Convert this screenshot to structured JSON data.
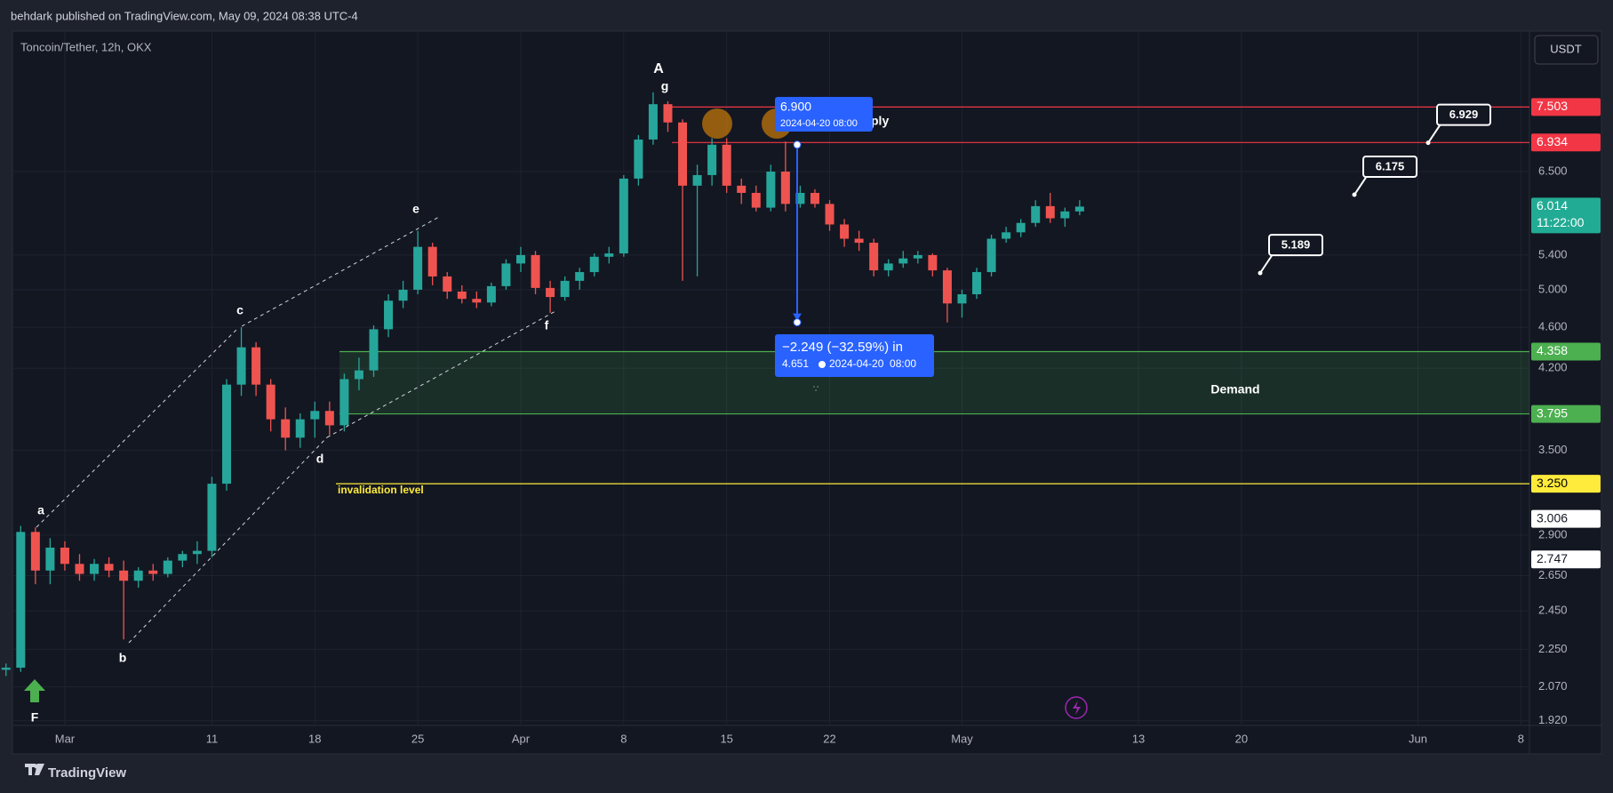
{
  "header": {
    "title": "behdark published on TradingView.com, May 09, 2024 08:38 UTC-4"
  },
  "footer": {
    "brand": "TradingView"
  },
  "chart_data": {
    "type": "candlestick",
    "symbol": "Toncoin/Tether, 12h, OKX",
    "currency": "USDT",
    "log_scale": true,
    "grid": true,
    "up_color": "#26a69a",
    "down_color": "#ef5350",
    "ylim": [
      1.9,
      8.88
    ],
    "yticks": [
      {
        "value": 6.5,
        "label": "6.500"
      },
      {
        "value": 5.4,
        "label": "5.400"
      },
      {
        "value": 5,
        "label": "5.000"
      },
      {
        "value": 4.6,
        "label": "4.600"
      },
      {
        "value": 4.2,
        "label": "4.200"
      },
      {
        "value": 3.5,
        "label": "3.500"
      },
      {
        "value": 2.9,
        "label": "2.900"
      },
      {
        "value": 2.65,
        "label": "2.650"
      },
      {
        "value": 2.45,
        "label": "2.450"
      },
      {
        "value": 2.25,
        "label": "2.250"
      },
      {
        "value": 2.07,
        "label": "2.070"
      },
      {
        "value": 1.92,
        "label": "1.920"
      }
    ],
    "xlim": [
      "2024-02-26T10:30",
      "2024-06-08T14:00"
    ],
    "xticks": [
      {
        "value": "2024-03-01",
        "label": "Mar"
      },
      {
        "value": "2024-03-11",
        "label": "11"
      },
      {
        "value": "2024-03-18",
        "label": "18"
      },
      {
        "value": "2024-03-25",
        "label": "25"
      },
      {
        "value": "2024-04-01",
        "label": "Apr"
      },
      {
        "value": "2024-04-08",
        "label": "8"
      },
      {
        "value": "2024-04-15",
        "label": "15"
      },
      {
        "value": "2024-04-22",
        "label": "22"
      },
      {
        "value": "2024-05-01",
        "label": "May"
      },
      {
        "value": "2024-05-13",
        "label": "13"
      },
      {
        "value": "2024-05-20",
        "label": "20"
      },
      {
        "value": "2024-06-01",
        "label": "Jun"
      },
      {
        "value": "2024-06-08",
        "label": "8"
      }
    ],
    "x": [
      "2024-02-26",
      "2024-02-27",
      "2024-02-28",
      "2024-02-29",
      "2024-03-01",
      "2024-03-02",
      "2024-03-03",
      "2024-03-04",
      "2024-03-05",
      "2024-03-06",
      "2024-03-07",
      "2024-03-08",
      "2024-03-09",
      "2024-03-10",
      "2024-03-11",
      "2024-03-12",
      "2024-03-13",
      "2024-03-14",
      "2024-03-15",
      "2024-03-16",
      "2024-03-17",
      "2024-03-18",
      "2024-03-19",
      "2024-03-20",
      "2024-03-21",
      "2024-03-22",
      "2024-03-23",
      "2024-03-24",
      "2024-03-25",
      "2024-03-26",
      "2024-03-27",
      "2024-03-28",
      "2024-03-29",
      "2024-03-30",
      "2024-03-31",
      "2024-04-01",
      "2024-04-02",
      "2024-04-03",
      "2024-04-04",
      "2024-04-05",
      "2024-04-06",
      "2024-04-07",
      "2024-04-08",
      "2024-04-09",
      "2024-04-10",
      "2024-04-11",
      "2024-04-12",
      "2024-04-13",
      "2024-04-14",
      "2024-04-15",
      "2024-04-16",
      "2024-04-17",
      "2024-04-18",
      "2024-04-19",
      "2024-04-20",
      "2024-04-21",
      "2024-04-22",
      "2024-04-23",
      "2024-04-24",
      "2024-04-25",
      "2024-04-26",
      "2024-04-27",
      "2024-04-28",
      "2024-04-29",
      "2024-04-30",
      "2024-05-01",
      "2024-05-02",
      "2024-05-03",
      "2024-05-04",
      "2024-05-05",
      "2024-05-06",
      "2024-05-07",
      "2024-05-08",
      "2024-05-09"
    ],
    "ohlc": [
      [
        2.15,
        2.18,
        2.12,
        2.16
      ],
      [
        2.16,
        2.96,
        2.14,
        2.92
      ],
      [
        2.92,
        2.95,
        2.6,
        2.68
      ],
      [
        2.68,
        2.88,
        2.6,
        2.82
      ],
      [
        2.82,
        2.86,
        2.68,
        2.72
      ],
      [
        2.72,
        2.78,
        2.62,
        2.66
      ],
      [
        2.66,
        2.75,
        2.62,
        2.72
      ],
      [
        2.72,
        2.76,
        2.64,
        2.68
      ],
      [
        2.68,
        2.74,
        2.3,
        2.62
      ],
      [
        2.62,
        2.7,
        2.58,
        2.68
      ],
      [
        2.68,
        2.72,
        2.62,
        2.66
      ],
      [
        2.66,
        2.76,
        2.64,
        2.74
      ],
      [
        2.74,
        2.8,
        2.7,
        2.78
      ],
      [
        2.78,
        2.86,
        2.72,
        2.8
      ],
      [
        2.8,
        3.3,
        2.76,
        3.25
      ],
      [
        3.25,
        4.1,
        3.2,
        4.05
      ],
      [
        4.05,
        4.6,
        3.95,
        4.4
      ],
      [
        4.4,
        4.45,
        3.95,
        4.05
      ],
      [
        4.05,
        4.1,
        3.65,
        3.75
      ],
      [
        3.75,
        3.85,
        3.5,
        3.6
      ],
      [
        3.6,
        3.8,
        3.52,
        3.75
      ],
      [
        3.75,
        3.9,
        3.6,
        3.82
      ],
      [
        3.82,
        3.9,
        3.62,
        3.7
      ],
      [
        3.7,
        4.15,
        3.65,
        4.1
      ],
      [
        4.1,
        4.3,
        4.0,
        4.18
      ],
      [
        4.18,
        4.62,
        4.12,
        4.58
      ],
      [
        4.58,
        4.95,
        4.5,
        4.88
      ],
      [
        4.88,
        5.1,
        4.8,
        5.0
      ],
      [
        5.0,
        5.7,
        4.95,
        5.5
      ],
      [
        5.5,
        5.55,
        5.05,
        5.15
      ],
      [
        5.15,
        5.2,
        4.9,
        4.98
      ],
      [
        4.98,
        5.05,
        4.85,
        4.9
      ],
      [
        4.9,
        4.98,
        4.8,
        4.86
      ],
      [
        4.86,
        5.08,
        4.82,
        5.04
      ],
      [
        5.04,
        5.35,
        5.0,
        5.3
      ],
      [
        5.3,
        5.5,
        5.2,
        5.4
      ],
      [
        5.4,
        5.45,
        4.95,
        5.02
      ],
      [
        5.02,
        5.1,
        4.75,
        4.92
      ],
      [
        4.92,
        5.15,
        4.88,
        5.1
      ],
      [
        5.1,
        5.25,
        5.0,
        5.2
      ],
      [
        5.2,
        5.42,
        5.15,
        5.38
      ],
      [
        5.38,
        5.5,
        5.3,
        5.42
      ],
      [
        5.42,
        6.45,
        5.38,
        6.4
      ],
      [
        6.4,
        7.05,
        6.3,
        6.98
      ],
      [
        6.98,
        7.75,
        6.9,
        7.55
      ],
      [
        7.55,
        7.6,
        7.1,
        7.25
      ],
      [
        7.25,
        7.3,
        5.1,
        6.3
      ],
      [
        6.3,
        6.6,
        5.15,
        6.45
      ],
      [
        6.45,
        7.0,
        6.3,
        6.9
      ],
      [
        6.9,
        7.0,
        6.2,
        6.3
      ],
      [
        6.3,
        6.4,
        6.05,
        6.2
      ],
      [
        6.2,
        6.3,
        5.95,
        6.0
      ],
      [
        6.0,
        6.6,
        5.95,
        6.5
      ],
      [
        6.5,
        6.95,
        5.95,
        6.05
      ],
      [
        6.05,
        6.3,
        6.0,
        6.2
      ],
      [
        6.2,
        6.25,
        6.0,
        6.05
      ],
      [
        6.05,
        6.1,
        5.7,
        5.78
      ],
      [
        5.78,
        5.85,
        5.5,
        5.6
      ],
      [
        5.6,
        5.7,
        5.45,
        5.55
      ],
      [
        5.55,
        5.6,
        5.15,
        5.22
      ],
      [
        5.22,
        5.35,
        5.15,
        5.3
      ],
      [
        5.3,
        5.45,
        5.25,
        5.36
      ],
      [
        5.36,
        5.45,
        5.3,
        5.4
      ],
      [
        5.4,
        5.42,
        5.15,
        5.22
      ],
      [
        5.22,
        5.25,
        4.65,
        4.85
      ],
      [
        4.85,
        5.0,
        4.7,
        4.95
      ],
      [
        4.95,
        5.25,
        4.9,
        5.2
      ],
      [
        5.2,
        5.65,
        5.15,
        5.6
      ],
      [
        5.6,
        5.75,
        5.55,
        5.68
      ],
      [
        5.68,
        5.85,
        5.62,
        5.8
      ],
      [
        5.8,
        6.1,
        5.75,
        6.02
      ],
      [
        6.02,
        6.2,
        5.8,
        5.86
      ],
      [
        5.86,
        6.0,
        5.75,
        5.95
      ],
      [
        5.95,
        6.1,
        5.9,
        6.014
      ]
    ],
    "levels": [
      {
        "price": 7.503,
        "color": "#f23645",
        "label_text_color": "#ffffff"
      },
      {
        "price": 6.934,
        "color": "#f23645",
        "label_text_color": "#ffffff"
      },
      {
        "price": 4.358,
        "color": "#4caf50",
        "label_text_color": "#ffffff"
      },
      {
        "price": 3.795,
        "color": "#4caf50",
        "label_text_color": "#ffffff"
      },
      {
        "price": {
          "value": 3.25,
          "label": "3.250"
        },
        "color": "#ffeb3b",
        "label_text_color": "#000000"
      }
    ],
    "zone": {
      "label": "Demand",
      "color": "rgba(76,175,80,0.16)"
    },
    "level_note": "invalidation level",
    "supply_fragment": "ply",
    "last_price": {
      "price": 6.014,
      "countdown": "11:22:00",
      "color": "#22ab94"
    },
    "price_markers": [
      3.006,
      2.747
    ],
    "callouts": [
      6.929,
      6.175,
      5.189
    ],
    "measure": {
      "start": {
        "value": 6.9,
        "label": "6.900"
      },
      "start_time": "2024-04-20 08:00",
      "change": "−2.249 (−32.59%) in",
      "end": 4.651,
      "end_time": "2024-04-20  08:00",
      "color": "#2962ff"
    },
    "wave_labels": [
      "a",
      "b",
      "c",
      "d",
      "e",
      "f",
      "g",
      "A",
      "F"
    ]
  }
}
